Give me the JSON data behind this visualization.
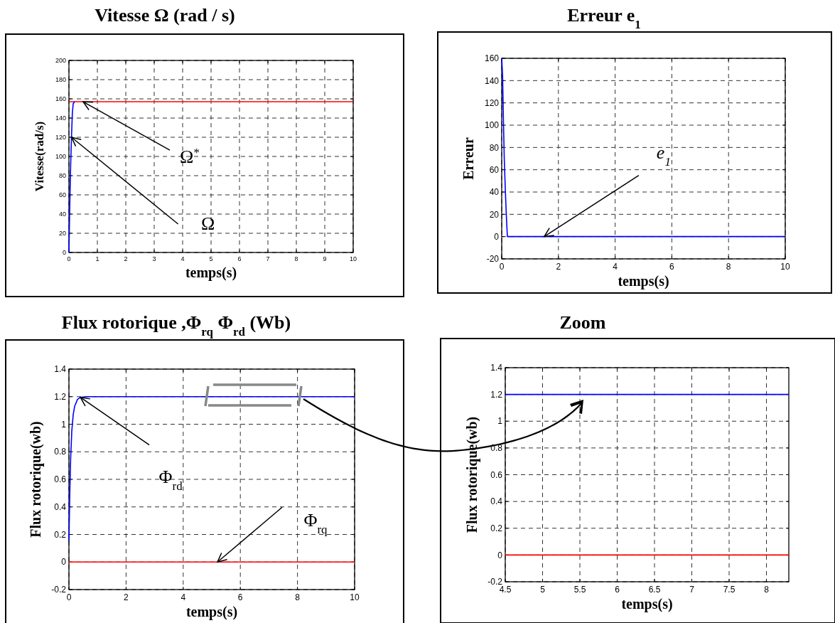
{
  "chart_data": [
    {
      "type": "line",
      "title": "Vitesse Ω  (rad / s)",
      "xlabel": "temps(s)",
      "ylabel": "Vitesse(rad/s)",
      "xlim": [
        0,
        10
      ],
      "ylim": [
        0,
        200
      ],
      "xticks": [
        0,
        1,
        2,
        3,
        4,
        5,
        6,
        7,
        8,
        9,
        10
      ],
      "yticks": [
        0,
        20,
        40,
        60,
        80,
        100,
        120,
        140,
        160,
        180,
        200
      ],
      "grid": true,
      "series": [
        {
          "color": "#ff0000",
          "x": [
            0,
            10
          ],
          "values": [
            157,
            157
          ]
        },
        {
          "color": "#0000ff",
          "x": [
            0,
            0.03,
            0.06,
            0.09,
            0.12,
            0.15,
            0.2
          ],
          "values": [
            0,
            50,
            90,
            120,
            145,
            155,
            157
          ]
        }
      ],
      "annotations": [
        {
          "text": "Ω$^{*}$",
          "x": 0.5,
          "y": 157
        },
        {
          "text": "Ω",
          "x": 0.09,
          "y": 120
        }
      ]
    },
    {
      "type": "line",
      "title": "Erreur e$_{1}$",
      "xlabel": "temps(s)",
      "ylabel": "Erreur",
      "xlim": [
        0,
        10
      ],
      "ylim": [
        -20,
        160
      ],
      "xticks": [
        0,
        2,
        4,
        6,
        8,
        10
      ],
      "yticks": [
        -20,
        0,
        20,
        40,
        60,
        80,
        100,
        120,
        140,
        160
      ],
      "grid": true,
      "series": [
        {
          "color": "#0000ff",
          "x": [
            0,
            0.03,
            0.06,
            0.09,
            0.13,
            0.17,
            0.2,
            10
          ],
          "values": [
            160,
            145,
            105,
            70,
            40,
            15,
            0,
            0
          ]
        }
      ],
      "annotations": [
        {
          "text": "e$_{1}$",
          "x": 1.5,
          "y": 0
        }
      ]
    },
    {
      "type": "line",
      "title": "Flux rotorique ,Φ$_{rq}$ Φ$_{rd}$ (Wb)",
      "xlabel": "temps(s)",
      "ylabel": "Flux rotorique(wb)",
      "xlim": [
        0,
        10
      ],
      "ylim": [
        -0.2,
        1.4
      ],
      "xticks": [
        0,
        2,
        4,
        6,
        8,
        10
      ],
      "yticks": [
        -0.2,
        0,
        0.2,
        0.4,
        0.6,
        0.8,
        1,
        1.2,
        1.4
      ],
      "grid": true,
      "series": [
        {
          "color": "#0000ff",
          "x": [
            0,
            0.03,
            0.06,
            0.1,
            0.15,
            0.2,
            0.3,
            0.4,
            0.6,
            10
          ],
          "values": [
            0.15,
            0.5,
            0.75,
            0.95,
            1.07,
            1.13,
            1.18,
            1.195,
            1.2,
            1.2
          ]
        },
        {
          "color": "#ff0000",
          "x": [
            0,
            10
          ],
          "values": [
            0,
            0
          ]
        }
      ],
      "annotations": [
        {
          "text": "Φ$_{rd}$",
          "x": 0.4,
          "y": 1.195
        },
        {
          "text": "Φ$_{rq}$",
          "x": 5.2,
          "y": 0
        }
      ]
    },
    {
      "type": "line",
      "title": "Zoom",
      "xlabel": "temps(s)",
      "ylabel": "Flux rotorique(wb)",
      "xlim": [
        4.5,
        8.3
      ],
      "ylim": [
        -0.2,
        1.4
      ],
      "xticks": [
        4.5,
        5,
        5.5,
        6,
        6.5,
        7,
        7.5,
        8
      ],
      "yticks": [
        -0.2,
        0,
        0.2,
        0.4,
        0.6,
        0.8,
        1,
        1.2,
        1.4
      ],
      "grid": true,
      "series": [
        {
          "color": "#0000ff",
          "x": [
            4.5,
            8.3
          ],
          "values": [
            1.2,
            1.2
          ]
        },
        {
          "color": "#ff0000",
          "x": [
            4.5,
            8.3
          ],
          "values": [
            0,
            0
          ]
        }
      ]
    }
  ]
}
